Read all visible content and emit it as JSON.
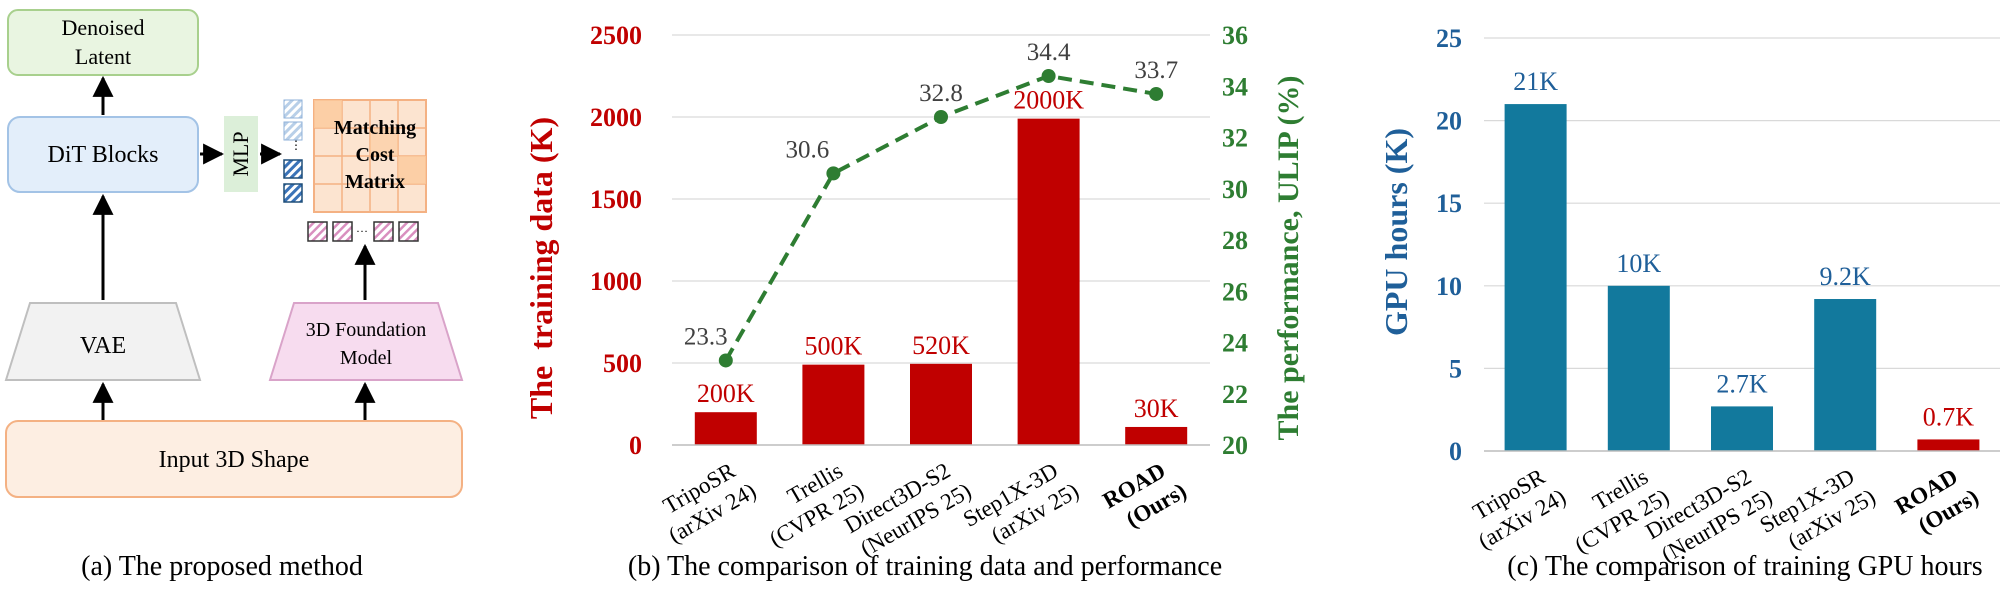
{
  "panel_a": {
    "caption": "(a) The proposed method",
    "denoised": [
      "Denoised",
      "Latent"
    ],
    "dit": "DiT Blocks",
    "mlp": "MLP",
    "matrix": [
      "Matching",
      "Cost",
      "Matrix"
    ],
    "vae": "VAE",
    "foundation": [
      "3D Foundation",
      "Model"
    ],
    "input": "Input 3D Shape",
    "colors": {
      "denoised_fill": "#e9f5e1",
      "denoised_stroke": "#a8d08d",
      "dit_fill": "#e3eefa",
      "dit_stroke": "#a3c3e6",
      "mlp_fill": "#dcefd9",
      "vae_fill": "#f2f2f2",
      "vae_stroke": "#bfbfbf",
      "foundation_fill": "#f7dcef",
      "foundation_stroke": "#d9a3c9",
      "input_fill": "#fdeee2",
      "input_stroke": "#f4b183",
      "matrix_fill": "#fbd3ae",
      "matrix_stroke": "#f4b183"
    }
  },
  "chart_data": [
    {
      "type": "bar+line",
      "caption": "(b) The comparison of training data and performance",
      "categories": [
        [
          "TripoSR",
          "(arXiv 24)"
        ],
        [
          "Trellis",
          "(CVPR 25)"
        ],
        [
          "Direct3D-S2",
          "(NeurIPS 25)"
        ],
        [
          "Step1X-3D",
          "(arXiv 25)"
        ],
        [
          "ROAD",
          "(Ours)"
        ]
      ],
      "bar_series": {
        "values": [
          200,
          500,
          520,
          2000,
          30
        ],
        "display_values": [
          200,
          490,
          495,
          1990,
          110
        ],
        "labels": [
          "200K",
          "500K",
          "520K",
          "2000K",
          "30K"
        ],
        "color": "#c00000"
      },
      "line_series": {
        "values": [
          23.3,
          30.6,
          32.8,
          34.4,
          33.7
        ],
        "labels": [
          "23.3",
          "30.6",
          "32.8",
          "34.4",
          "33.7"
        ],
        "color": "#2e7d32"
      },
      "ylabel_left": "The  training data (K)",
      "ylabel_right": "The performance, ULIP (%)",
      "yticks_left": [
        "0",
        "500",
        "1000",
        "1500",
        "2000",
        "2500"
      ],
      "yticks_right": [
        "20",
        "22",
        "24",
        "26",
        "28",
        "30",
        "32",
        "34",
        "36"
      ],
      "ylim_left": [
        0,
        2500
      ],
      "ylim_right": [
        20,
        36
      ],
      "grid": true
    },
    {
      "type": "bar",
      "caption": "(c) The comparison of training GPU hours",
      "categories": [
        [
          "TripoSR",
          "(arXiv 24)"
        ],
        [
          "Trellis",
          "(CVPR 25)"
        ],
        [
          "Direct3D-S2",
          "(NeurIPS 25)"
        ],
        [
          "Step1X-3D",
          "(arXiv 25)"
        ],
        [
          "ROAD",
          "(Ours)"
        ]
      ],
      "values": [
        21,
        10,
        2.7,
        9.2,
        0.7
      ],
      "labels": [
        "21K",
        "10K",
        "2.7K",
        "9.2K",
        "0.7K"
      ],
      "colors": [
        "#12799d",
        "#12799d",
        "#12799d",
        "#12799d",
        "#c00000"
      ],
      "label_colors": [
        "#1f5f99",
        "#1f5f99",
        "#1f5f99",
        "#1f5f99",
        "#c00000"
      ],
      "ylabel": "GPU hours (K)",
      "yticks": [
        "0",
        "5",
        "10",
        "15",
        "20",
        "25"
      ],
      "ylim": [
        0,
        25
      ],
      "grid": true
    }
  ]
}
